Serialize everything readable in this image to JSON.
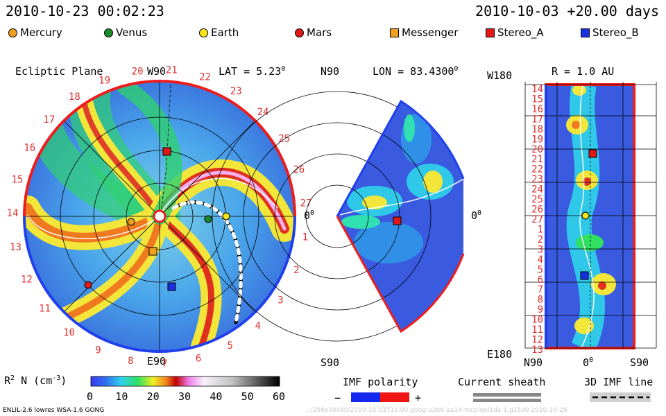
{
  "header": {
    "timestamp": "2010-10-23 00:02:23",
    "model_run": "2010-10-03 +20.00 days"
  },
  "legend": [
    {
      "label": "Mercury",
      "color": "#f0a020",
      "shape": "circle"
    },
    {
      "label": "Venus",
      "color": "#1a8a2a",
      "shape": "circle"
    },
    {
      "label": "Earth",
      "color": "#f5e61a",
      "shape": "circle"
    },
    {
      "label": "Mars",
      "color": "#e01818",
      "shape": "circle"
    },
    {
      "label": "Messenger",
      "color": "#f0a020",
      "shape": "square"
    },
    {
      "label": "Stereo_A",
      "color": "#e01818",
      "shape": "square"
    },
    {
      "label": "Stereo_B",
      "color": "#1830e0",
      "shape": "square"
    }
  ],
  "ecliptic": {
    "title": "Ecliptic Plane",
    "top_label": "W90",
    "bottom_label": "E90",
    "right_label": "0",
    "right_sup": "0",
    "lat_label": "LAT = 5.23",
    "lat_sup": "0",
    "rim_numbers": [
      "1",
      "2",
      "3",
      "4",
      "5",
      "6",
      "7",
      "8",
      "9",
      "10",
      "11",
      "12",
      "13",
      "14",
      "15",
      "16",
      "17",
      "18",
      "19",
      "20",
      "21",
      "22",
      "23",
      "24",
      "25",
      "26",
      "27"
    ]
  },
  "meridional": {
    "top_label": "N90",
    "bottom_label": "S90",
    "lon_label": "LON = 83.4300",
    "lon_sup": "0",
    "right_label": "0",
    "right_sup": "0"
  },
  "radial": {
    "title": "R = 1.0 AU",
    "top_left": "W180",
    "bottom_left": "E180",
    "x_left": "N90",
    "x_mid": "0",
    "x_mid_sup": "0",
    "x_right": "S90",
    "day_labels": [
      "14",
      "15",
      "16",
      "17",
      "18",
      "19",
      "20",
      "21",
      "22",
      "23",
      "24",
      "25",
      "26",
      "27",
      "1",
      "2",
      "3",
      "4",
      "5",
      "6",
      "7",
      "8",
      "9",
      "10",
      "11",
      "12",
      "13"
    ]
  },
  "colorbar": {
    "label": "R",
    "label_sup": "2",
    "label_rest": " N (cm",
    "label_unit_sup": "-3",
    "label_close": ")",
    "ticks": [
      "0",
      "10",
      "20",
      "30",
      "40",
      "50",
      "60"
    ]
  },
  "imf": {
    "polarity_title": "IMF polarity",
    "minus": "−",
    "plus": "+",
    "sheath_title": "Current sheath",
    "line_title": "3D IMF line"
  },
  "footer": {
    "model": "ENLIL-2.6 lowres WSA-1.6 GONG",
    "path": "../256x30x90/2010-10-03T11:00-gong-a2b6-aa14-mcp/onl1da-1.g15d0    2010-10-26"
  }
}
